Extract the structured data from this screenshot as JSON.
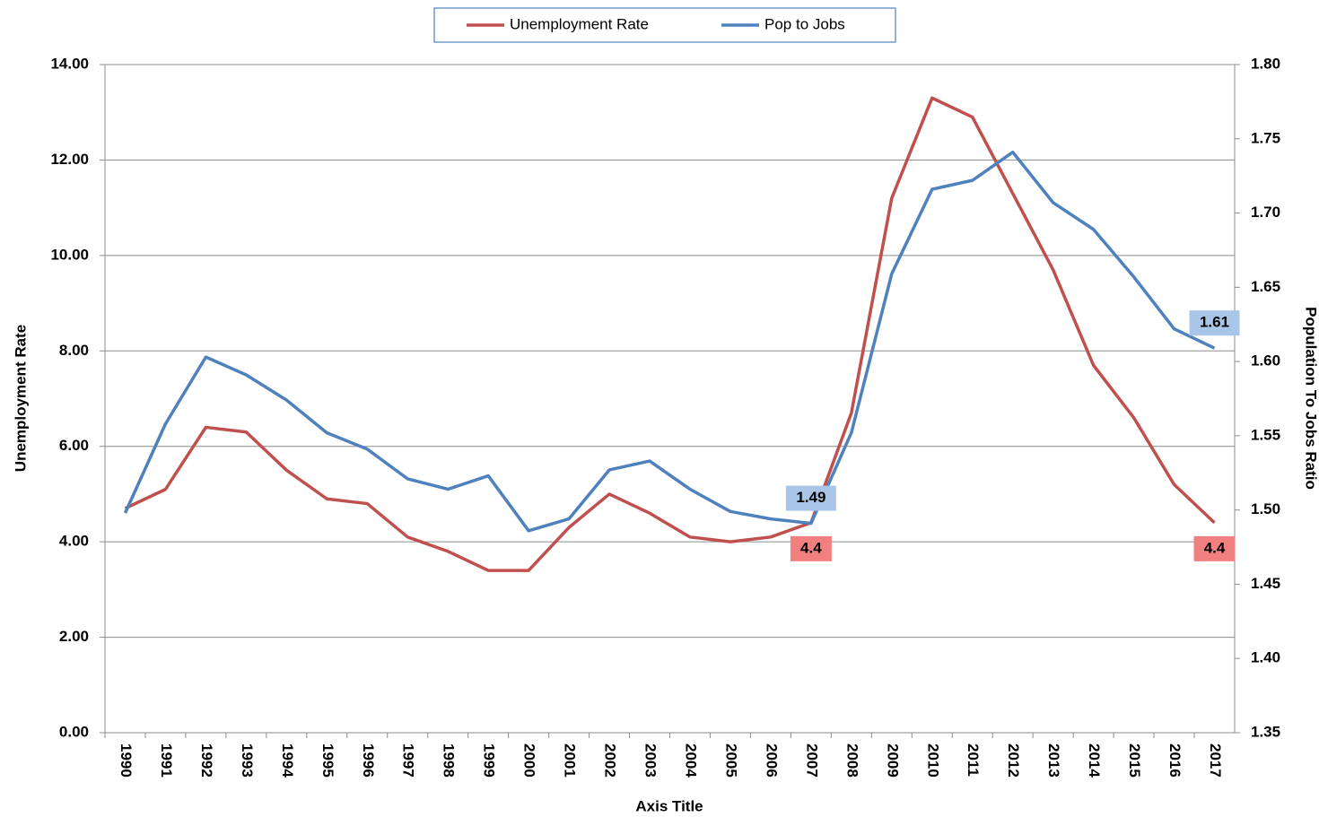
{
  "chart_data": {
    "type": "line",
    "categories": [
      "1990",
      "1991",
      "1992",
      "1993",
      "1994",
      "1995",
      "1996",
      "1997",
      "1998",
      "1999",
      "2000",
      "2001",
      "2002",
      "2003",
      "2004",
      "2005",
      "2006",
      "2007",
      "2008",
      "2009",
      "2010",
      "2011",
      "2012",
      "2013",
      "2014",
      "2015",
      "2016",
      "2017"
    ],
    "series": [
      {
        "name": "Unemployment Rate",
        "color": "#c0504d",
        "label_color": "#f28080",
        "values": [
          4.7,
          5.1,
          6.4,
          6.3,
          5.5,
          4.9,
          4.8,
          4.1,
          3.8,
          3.4,
          3.4,
          4.3,
          5.0,
          4.6,
          4.1,
          4.0,
          4.1,
          4.4,
          6.7,
          11.2,
          13.3,
          12.9,
          11.3,
          9.7,
          7.7,
          6.6,
          5.2,
          4.4
        ],
        "value_labels": [
          null,
          null,
          null,
          null,
          null,
          null,
          null,
          null,
          null,
          null,
          null,
          null,
          null,
          null,
          null,
          null,
          null,
          "4.4",
          null,
          null,
          null,
          null,
          null,
          null,
          null,
          null,
          null,
          "4.4"
        ]
      },
      {
        "name": "Pop to Jobs",
        "color": "#4f81bd",
        "label_color": "#a9c6e8",
        "axis": "y2",
        "values": [
          1.498,
          1.558,
          1.603,
          1.591,
          1.574,
          1.552,
          1.541,
          1.521,
          1.514,
          1.523,
          1.486,
          1.494,
          1.527,
          1.533,
          1.514,
          1.499,
          1.494,
          1.491,
          1.552,
          1.659,
          1.716,
          1.722,
          1.741,
          1.707,
          1.689,
          1.657,
          1.622,
          1.609
        ],
        "value_labels": [
          null,
          null,
          null,
          null,
          null,
          null,
          null,
          null,
          null,
          null,
          null,
          null,
          null,
          null,
          null,
          null,
          null,
          "1.49",
          null,
          null,
          null,
          null,
          null,
          null,
          null,
          null,
          null,
          "1.61"
        ]
      }
    ],
    "xlabel": "Axis Title",
    "ylabel": "Unemployment Rate",
    "y2label": "Population To Jobs Ratio",
    "ylim": [
      0,
      14
    ],
    "yticks": [
      {
        "value": 0,
        "label": "0.00"
      },
      {
        "value": 2,
        "label": "2.00"
      },
      {
        "value": 4,
        "label": "4.00"
      },
      {
        "value": 6,
        "label": "6.00"
      },
      {
        "value": 8,
        "label": "8.00"
      },
      {
        "value": 10,
        "label": "10.00"
      },
      {
        "value": 12,
        "label": "12.00"
      },
      {
        "value": 14,
        "label": "14.00"
      }
    ],
    "y2lim": [
      1.35,
      1.8
    ],
    "y2ticks": [
      1.35,
      {
        "value": 1.4,
        "label": "1.40"
      },
      1.45,
      {
        "value": 1.5,
        "label": "1.50"
      },
      1.55,
      {
        "value": 1.6,
        "label": "1.60"
      },
      1.65,
      {
        "value": 1.7,
        "label": "1.70"
      },
      1.75,
      {
        "value": 1.8,
        "label": "1.80"
      }
    ],
    "grid": true,
    "legend": "top"
  }
}
